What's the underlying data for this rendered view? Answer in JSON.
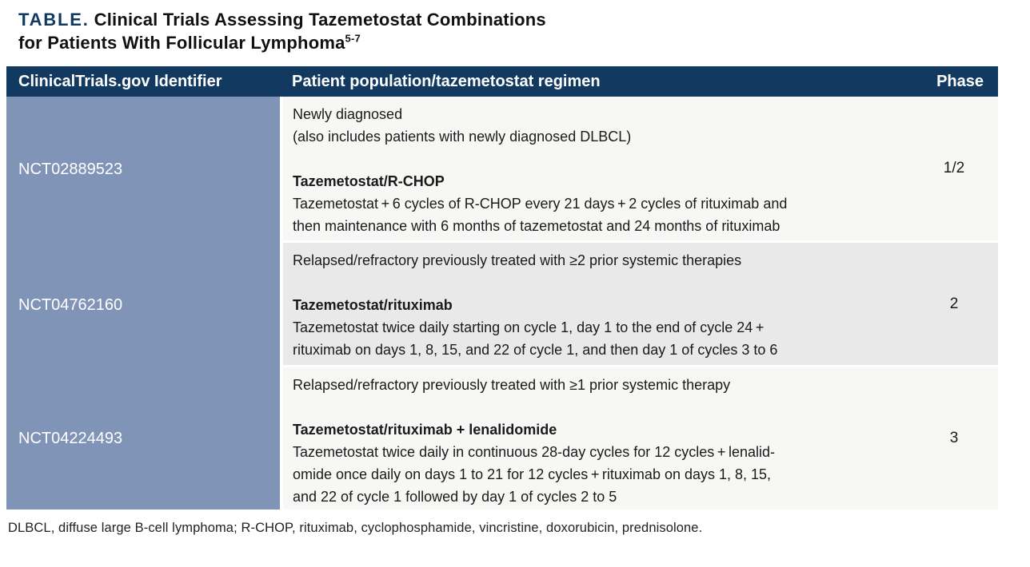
{
  "title": {
    "label": "TABLE.",
    "line1": "Clinical Trials Assessing Tazemetostat Combinations",
    "line2": "for Patients With Follicular Lymphoma",
    "superscript": "5-7"
  },
  "colors": {
    "header_navy": "#123a61",
    "identifier_column_blue": "#8094b8",
    "row_light": "#f7f8f5",
    "row_gray": "#e8e9e8"
  },
  "table": {
    "headers": {
      "identifier": "ClinicalTrials.gov Identifier",
      "population": "Patient population/tazemetostat regimen",
      "phase": "Phase"
    },
    "rows": [
      {
        "identifier": "NCT02889523",
        "population": "Newly diagnosed\n(also includes patients with newly diagnosed DLBCL)",
        "regimen_name": "Tazemetostat/R-CHOP",
        "regimen_description": "Tazemetostat + 6 cycles of R-CHOP every 21 days + 2 cycles of rituximab and\nthen maintenance with 6 months of tazemetostat and 24 months of rituximab",
        "phase": "1/2"
      },
      {
        "identifier": "NCT04762160",
        "population": "Relapsed/refractory previously treated with ≥2 prior systemic therapies",
        "regimen_name": "Tazemetostat/rituximab",
        "regimen_description": "Tazemetostat twice daily starting on cycle 1, day 1 to the end of cycle 24 +\nrituximab on days 1, 8, 15, and 22 of cycle 1, and then day 1 of cycles 3 to 6",
        "phase": "2"
      },
      {
        "identifier": "NCT04224493",
        "population": "Relapsed/refractory previously treated with ≥1 prior systemic therapy",
        "regimen_name": "Tazemetostat/rituximab + lenalidomide",
        "regimen_description": "Tazemetostat twice daily in continuous 28-day cycles for 12 cycles + lenalid-\nomide once daily on days 1 to 21 for 12 cycles + rituximab on days 1, 8, 15,\nand 22 of cycle 1 followed by day 1 of cycles 2 to 5",
        "phase": "3"
      }
    ]
  },
  "footnote": "DLBCL, diffuse large B-cell lymphoma; R-CHOP, rituximab, cyclophosphamide, vincristine, doxorubicin, prednisolone."
}
